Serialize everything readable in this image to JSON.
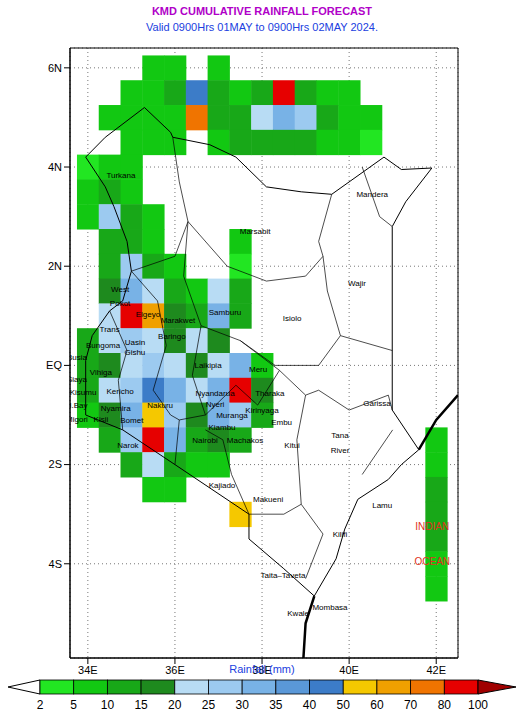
{
  "chart_data": {
    "type": "map",
    "title": "KMD CUMULATIVE RAINFALL FORECAST",
    "subtitle": "Valid 0900Hrs 01MAY to 0900Hrs 02MAY 2024.",
    "xlim": [
      33.59,
      42.5
    ],
    "ylim": [
      -5.9,
      6.4
    ],
    "xticks": [
      {
        "value": 34,
        "label": "34E"
      },
      {
        "value": 36,
        "label": "36E"
      },
      {
        "value": 38,
        "label": "38E"
      },
      {
        "value": 40,
        "label": "40E"
      },
      {
        "value": 42,
        "label": "42E"
      }
    ],
    "yticks": [
      {
        "value": -4,
        "label": "4S"
      },
      {
        "value": -2,
        "label": "2S"
      },
      {
        "value": 0,
        "label": "EQ"
      },
      {
        "value": 2,
        "label": "2N"
      },
      {
        "value": 4,
        "label": "4N"
      },
      {
        "value": 6,
        "label": "6N"
      }
    ],
    "grid": true,
    "regions": [
      {
        "name": "Mandera",
        "lon": 40.53,
        "lat": 3.44
      },
      {
        "name": "Turkana",
        "lon": 34.76,
        "lat": 3.82
      },
      {
        "name": "Marsabit",
        "lon": 37.84,
        "lat": 2.7
      },
      {
        "name": "Wajir",
        "lon": 40.18,
        "lat": 1.64
      },
      {
        "name": "West",
        "lon": 34.74,
        "lat": 1.52
      },
      {
        "name": "Pokot",
        "lon": 34.74,
        "lat": 1.24
      },
      {
        "name": "Samburu",
        "lon": 37.15,
        "lat": 1.06
      },
      {
        "name": "Elgeyo",
        "lon": 35.38,
        "lat": 1.02
      },
      {
        "name": "Marakwet",
        "lon": 36.07,
        "lat": 0.9
      },
      {
        "name": "Baringo",
        "lon": 35.93,
        "lat": 0.58
      },
      {
        "name": "Trans",
        "lon": 34.5,
        "lat": 0.72
      },
      {
        "name": "Bungoma",
        "lon": 34.35,
        "lat": 0.4
      },
      {
        "name": "Uasin",
        "lon": 35.08,
        "lat": 0.46
      },
      {
        "name": "Gishu",
        "lon": 35.08,
        "lat": 0.26
      },
      {
        "name": "Busia",
        "lon": 33.75,
        "lat": 0.15
      },
      {
        "name": "Isiolo",
        "lon": 38.69,
        "lat": 0.94
      },
      {
        "name": "Laikipia",
        "lon": 36.76,
        "lat": -0.02
      },
      {
        "name": "Meru",
        "lon": 37.91,
        "lat": -0.1
      },
      {
        "name": "Siaya",
        "lon": 33.75,
        "lat": -0.3
      },
      {
        "name": "Vihiga",
        "lon": 34.3,
        "lat": -0.15
      },
      {
        "name": "Kisumu",
        "lon": 33.89,
        "lat": -0.56
      },
      {
        "name": "Kericho",
        "lon": 34.74,
        "lat": -0.54
      },
      {
        "name": "Nyandarua",
        "lon": 36.92,
        "lat": -0.58
      },
      {
        "name": "Tharaka",
        "lon": 38.18,
        "lat": -0.58
      },
      {
        "name": "Nyeri",
        "lon": 36.92,
        "lat": -0.8
      },
      {
        "name": "Garissa",
        "lon": 40.64,
        "lat": -0.78
      },
      {
        "name": "Kirinyaga",
        "lon": 38.0,
        "lat": -0.92
      },
      {
        "name": "Nakuru",
        "lon": 35.66,
        "lat": -0.82
      },
      {
        "name": "H.Bay",
        "lon": 33.74,
        "lat": -0.82
      },
      {
        "name": "Nyamira",
        "lon": 34.64,
        "lat": -0.88
      },
      {
        "name": "Embu",
        "lon": 38.45,
        "lat": -1.15
      },
      {
        "name": "Migori",
        "lon": 33.75,
        "lat": -1.1
      },
      {
        "name": "Kisii",
        "lon": 34.3,
        "lat": -1.1
      },
      {
        "name": "Bomet",
        "lon": 35.01,
        "lat": -1.12
      },
      {
        "name": "Muranga",
        "lon": 37.31,
        "lat": -1.02
      },
      {
        "name": "Kiambu",
        "lon": 37.08,
        "lat": -1.26
      },
      {
        "name": "Tana",
        "lon": 39.79,
        "lat": -1.42
      },
      {
        "name": "River",
        "lon": 39.79,
        "lat": -1.72
      },
      {
        "name": "Nairobi",
        "lon": 36.69,
        "lat": -1.52
      },
      {
        "name": "Machakos",
        "lon": 37.61,
        "lat": -1.52
      },
      {
        "name": "Narok",
        "lon": 34.92,
        "lat": -1.62
      },
      {
        "name": "Kitui",
        "lon": 38.69,
        "lat": -1.62
      },
      {
        "name": "Kajiado",
        "lon": 37.08,
        "lat": -2.42
      },
      {
        "name": "Makueni",
        "lon": 38.14,
        "lat": -2.72
      },
      {
        "name": "Lamu",
        "lon": 40.76,
        "lat": -2.84
      },
      {
        "name": "Kilifi",
        "lon": 39.79,
        "lat": -3.42
      },
      {
        "name": "Taita–Taveta",
        "lon": 38.48,
        "lat": -4.24
      },
      {
        "name": "Mombasa",
        "lon": 39.56,
        "lat": -4.88
      },
      {
        "name": "Kwale",
        "lon": 38.83,
        "lat": -5.02
      }
    ],
    "annotations": [
      {
        "text": "INDIAN",
        "lon": 41.91,
        "lat": -3.26,
        "color": "#e03020"
      },
      {
        "text": "OCEAN",
        "lon": 41.91,
        "lat": -3.98,
        "color": "#e03020"
      }
    ],
    "rainfall": {
      "cell_size": 0.5,
      "cells": [
        [
          35.5,
          6.0,
          5
        ],
        [
          36.0,
          6.0,
          5
        ],
        [
          37.0,
          6.0,
          5
        ],
        [
          35.0,
          5.5,
          5
        ],
        [
          35.5,
          5.5,
          5
        ],
        [
          36.0,
          5.5,
          10
        ],
        [
          36.5,
          5.5,
          40
        ],
        [
          37.0,
          5.5,
          10
        ],
        [
          37.5,
          5.5,
          5
        ],
        [
          38.0,
          5.5,
          10
        ],
        [
          38.5,
          5.5,
          80
        ],
        [
          39.0,
          5.5,
          10
        ],
        [
          39.5,
          5.5,
          5
        ],
        [
          40.0,
          5.5,
          5
        ],
        [
          34.5,
          5.0,
          5
        ],
        [
          35.0,
          5.0,
          5
        ],
        [
          35.5,
          5.0,
          5
        ],
        [
          36.0,
          5.0,
          5
        ],
        [
          36.5,
          5.0,
          70
        ],
        [
          37.0,
          5.0,
          10
        ],
        [
          37.5,
          5.0,
          10
        ],
        [
          38.0,
          5.0,
          20
        ],
        [
          38.5,
          5.0,
          30
        ],
        [
          39.0,
          5.0,
          25
        ],
        [
          39.5,
          5.0,
          10
        ],
        [
          40.0,
          5.0,
          5
        ],
        [
          40.5,
          5.0,
          5
        ],
        [
          35.0,
          4.5,
          5
        ],
        [
          35.5,
          4.5,
          5
        ],
        [
          36.0,
          4.5,
          5
        ],
        [
          37.0,
          4.5,
          5
        ],
        [
          37.5,
          4.5,
          10
        ],
        [
          38.0,
          4.5,
          10
        ],
        [
          38.5,
          4.5,
          10
        ],
        [
          39.0,
          4.5,
          10
        ],
        [
          39.5,
          4.5,
          5
        ],
        [
          40.0,
          4.5,
          5
        ],
        [
          40.5,
          4.5,
          3
        ],
        [
          34.0,
          4.0,
          3
        ],
        [
          34.5,
          4.0,
          5
        ],
        [
          35.0,
          4.0,
          5
        ],
        [
          34.0,
          3.5,
          5
        ],
        [
          34.5,
          3.5,
          10
        ],
        [
          35.0,
          3.5,
          5
        ],
        [
          34.0,
          3.0,
          5
        ],
        [
          34.5,
          3.0,
          25
        ],
        [
          35.0,
          3.0,
          10
        ],
        [
          35.5,
          3.0,
          5
        ],
        [
          34.5,
          2.5,
          10
        ],
        [
          35.0,
          2.5,
          10
        ],
        [
          35.5,
          2.5,
          5
        ],
        [
          37.5,
          2.5,
          5
        ],
        [
          34.5,
          2.0,
          10
        ],
        [
          35.0,
          2.0,
          25
        ],
        [
          35.5,
          2.0,
          10
        ],
        [
          36.0,
          2.0,
          5
        ],
        [
          37.5,
          2.0,
          3
        ],
        [
          34.5,
          1.5,
          15
        ],
        [
          35.0,
          1.5,
          30
        ],
        [
          35.5,
          1.5,
          20
        ],
        [
          36.0,
          1.5,
          10
        ],
        [
          36.5,
          1.5,
          5
        ],
        [
          37.0,
          1.5,
          20
        ],
        [
          37.5,
          1.5,
          10
        ],
        [
          34.5,
          1.0,
          20
        ],
        [
          35.0,
          1.0,
          80
        ],
        [
          35.5,
          1.0,
          60
        ],
        [
          36.0,
          1.0,
          15
        ],
        [
          36.5,
          1.0,
          10
        ],
        [
          37.0,
          1.0,
          30
        ],
        [
          37.5,
          1.0,
          10
        ],
        [
          34.0,
          0.5,
          10
        ],
        [
          34.5,
          0.5,
          20
        ],
        [
          35.0,
          0.5,
          25
        ],
        [
          35.5,
          0.5,
          20
        ],
        [
          36.0,
          0.5,
          15
        ],
        [
          36.5,
          0.5,
          20
        ],
        [
          37.0,
          0.5,
          15
        ],
        [
          34.0,
          0.0,
          10
        ],
        [
          34.5,
          0.0,
          15
        ],
        [
          35.0,
          0.0,
          20
        ],
        [
          35.5,
          0.0,
          25
        ],
        [
          36.0,
          0.0,
          20
        ],
        [
          36.5,
          0.0,
          15
        ],
        [
          37.0,
          0.0,
          20
        ],
        [
          37.5,
          0.0,
          30
        ],
        [
          38.0,
          0.0,
          5
        ],
        [
          34.0,
          -0.5,
          10
        ],
        [
          34.5,
          -0.5,
          20
        ],
        [
          35.0,
          -0.5,
          25
        ],
        [
          35.5,
          -0.5,
          40
        ],
        [
          36.0,
          -0.5,
          30
        ],
        [
          36.5,
          -0.5,
          20
        ],
        [
          37.0,
          -0.5,
          30
        ],
        [
          37.5,
          -0.5,
          80
        ],
        [
          38.0,
          -0.5,
          15
        ],
        [
          34.0,
          -1.0,
          5
        ],
        [
          34.5,
          -1.0,
          15
        ],
        [
          35.0,
          -1.0,
          30
        ],
        [
          35.5,
          -1.0,
          50
        ],
        [
          36.0,
          -1.0,
          25
        ],
        [
          36.5,
          -1.0,
          15
        ],
        [
          37.0,
          -1.0,
          30
        ],
        [
          37.5,
          -1.0,
          25
        ],
        [
          38.0,
          -1.0,
          10
        ],
        [
          34.5,
          -1.5,
          10
        ],
        [
          35.0,
          -1.5,
          25
        ],
        [
          35.5,
          -1.5,
          80
        ],
        [
          36.0,
          -1.5,
          30
        ],
        [
          36.5,
          -1.5,
          10
        ],
        [
          37.0,
          -1.5,
          15
        ],
        [
          37.5,
          -1.5,
          10
        ],
        [
          35.0,
          -2.0,
          10
        ],
        [
          35.5,
          -2.0,
          20
        ],
        [
          36.0,
          -2.0,
          10
        ],
        [
          36.5,
          -2.0,
          5
        ],
        [
          37.0,
          -2.0,
          5
        ],
        [
          35.5,
          -2.5,
          5
        ],
        [
          36.0,
          -2.5,
          5
        ],
        [
          37.5,
          -3.0,
          50
        ],
        [
          42.0,
          -1.5,
          5
        ],
        [
          42.0,
          -2.0,
          5
        ],
        [
          42.0,
          -2.5,
          10
        ],
        [
          42.0,
          -3.0,
          10
        ],
        [
          42.0,
          -3.5,
          10
        ],
        [
          42.0,
          -4.0,
          5
        ],
        [
          42.0,
          -4.5,
          5
        ]
      ]
    },
    "colorbar": {
      "label": "Rainfall (mm)",
      "ticks": [
        2,
        5,
        10,
        15,
        20,
        25,
        30,
        35,
        40,
        50,
        60,
        70,
        80,
        100
      ],
      "colors": [
        "#ffffff",
        "#22e622",
        "#12c812",
        "#18a818",
        "#1e8a1e",
        "#b8dcf4",
        "#9ccaf0",
        "#78b2e6",
        "#5a98d8",
        "#3c7cc8",
        "#f5c800",
        "#f0a000",
        "#f07400",
        "#e60000",
        "#a00000"
      ]
    }
  }
}
